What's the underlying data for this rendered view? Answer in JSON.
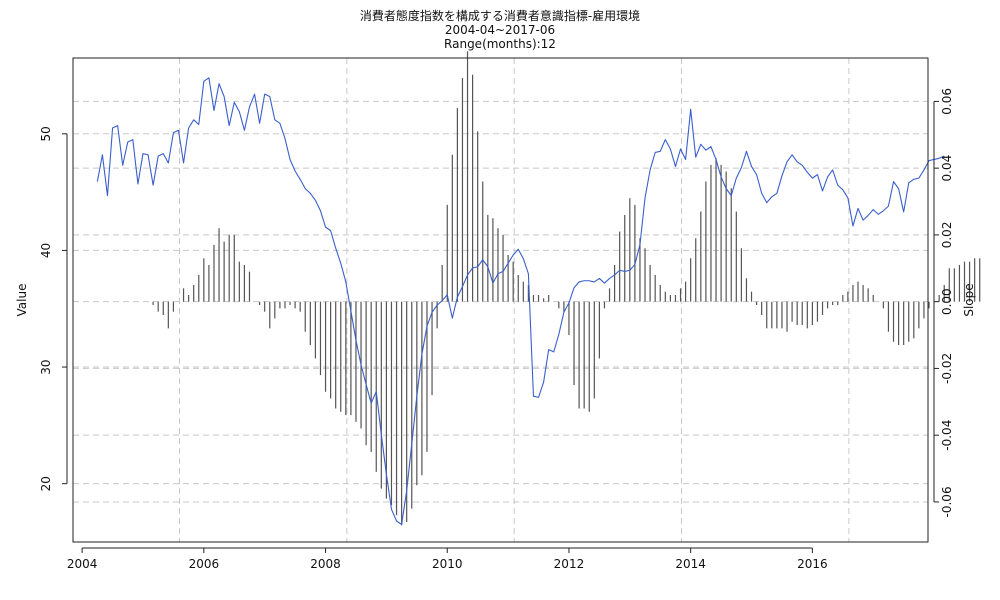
{
  "chart_data": {
    "type": "line",
    "title": "消費者態度指数を構成する消費者意識指標-雇用環境",
    "subtitle_lines": [
      "2004-04~2017-06",
      "Range(months):12"
    ],
    "xlabel": "",
    "ylabel_left": "Value",
    "ylabel_right": "Slope",
    "x_ticks": [
      "2004",
      "2006",
      "2008",
      "2010",
      "2012",
      "2014",
      "2016"
    ],
    "y_left_ticks": [
      "20",
      "30",
      "40",
      "50"
    ],
    "y_right_ticks": [
      "-0.06",
      "-0.04",
      "-0.02",
      "0.00",
      "0.02",
      "0.04",
      "0.06"
    ],
    "xlim": [
      2003.85,
      2017.9
    ],
    "ylim_left": [
      15.0,
      56.5
    ],
    "ylim_right": [
      -0.072,
      0.073
    ],
    "grid": true,
    "x_start": "2004-04",
    "series": [
      {
        "kind": "line",
        "axis": "left",
        "color": "#3a5fcd",
        "values": [
          45.9,
          48.2,
          44.7,
          50.5,
          50.7,
          47.3,
          49.3,
          49.5,
          45.7,
          48.3,
          48.2,
          45.6,
          48.1,
          48.3,
          47.5,
          50.1,
          50.3,
          47.5,
          50.5,
          51.2,
          50.8,
          54.5,
          54.8,
          52.0,
          54.3,
          53.2,
          50.7,
          52.7,
          51.9,
          50.3,
          52.3,
          53.4,
          50.9,
          53.4,
          53.2,
          51.2,
          50.9,
          49.6,
          47.8,
          46.8,
          46.1,
          45.3,
          44.9,
          44.3,
          43.4,
          42.0,
          41.7,
          40.2,
          38.9,
          37.3,
          34.8,
          32.3,
          30.2,
          28.5,
          26.9,
          27.9,
          24.2,
          20.8,
          17.8,
          16.8,
          16.5,
          19.4,
          23.4,
          27.5,
          31.1,
          33.5,
          34.7,
          35.3,
          35.7,
          36.2,
          34.2,
          36.0,
          36.9,
          37.9,
          38.5,
          38.6,
          39.2,
          38.6,
          37.2,
          38.0,
          38.2,
          38.9,
          39.6,
          40.1,
          39.3,
          38.0,
          27.5,
          27.4,
          28.7,
          31.5,
          31.3,
          32.8,
          34.7,
          35.5,
          36.8,
          37.3,
          37.4,
          37.4,
          37.3,
          37.6,
          37.2,
          37.6,
          37.9,
          38.3,
          38.2,
          38.3,
          38.8,
          40.5,
          44.5,
          46.9,
          48.4,
          48.5,
          49.5,
          48.7,
          47.2,
          48.7,
          47.8,
          52.1,
          48.0,
          49.1,
          48.6,
          48.9,
          47.8,
          46.3,
          45.3,
          44.7,
          46.2,
          47.1,
          48.5,
          47.2,
          46.5,
          44.9,
          44.1,
          44.6,
          44.9,
          46.4,
          47.6,
          48.2,
          47.6,
          47.3,
          46.7,
          46.2,
          46.5,
          45.1,
          46.3,
          46.9,
          45.6,
          45.2,
          44.5,
          42.1,
          43.6,
          42.6,
          43.0,
          43.5,
          43.1,
          43.4,
          43.8,
          45.9,
          45.3,
          43.3,
          45.8,
          46.1,
          46.2,
          46.9,
          47.7,
          47.8,
          47.9,
          48.1
        ]
      },
      {
        "kind": "histogram",
        "axis": "right",
        "color": "#555555",
        "x_start": "2005-03",
        "values": [
          -0.001,
          -0.003,
          -0.004,
          -0.008,
          -0.003,
          0.0,
          0.004,
          0.002,
          0.005,
          0.008,
          0.013,
          0.011,
          0.017,
          0.022,
          0.018,
          0.02,
          0.02,
          0.012,
          0.011,
          0.009,
          0.0,
          -0.001,
          -0.003,
          -0.008,
          -0.005,
          -0.002,
          -0.002,
          -0.001,
          -0.002,
          -0.003,
          -0.009,
          -0.013,
          -0.017,
          -0.022,
          -0.027,
          -0.029,
          -0.032,
          -0.033,
          -0.034,
          -0.034,
          -0.036,
          -0.038,
          -0.043,
          -0.045,
          -0.051,
          -0.056,
          -0.059,
          -0.061,
          -0.064,
          -0.067,
          -0.066,
          -0.062,
          -0.055,
          -0.052,
          -0.045,
          -0.028,
          -0.008,
          0.011,
          0.029,
          0.044,
          0.058,
          0.067,
          0.075,
          0.068,
          0.051,
          0.036,
          0.026,
          0.025,
          0.022,
          0.02,
          0.014,
          0.012,
          0.008,
          0.006,
          0.005,
          0.002,
          0.002,
          0.001,
          0.002,
          0.0,
          -0.002,
          -0.003,
          -0.01,
          -0.025,
          -0.032,
          -0.032,
          -0.033,
          -0.029,
          -0.017,
          -0.002,
          0.004,
          0.011,
          0.021,
          0.026,
          0.031,
          0.029,
          0.019,
          0.016,
          0.011,
          0.008,
          0.005,
          0.003,
          0.002,
          0.002,
          0.004,
          0.006,
          0.013,
          0.019,
          0.027,
          0.036,
          0.041,
          0.043,
          0.041,
          0.039,
          0.034,
          0.027,
          0.016,
          0.007,
          0.003,
          -0.001,
          -0.004,
          -0.008,
          -0.008,
          -0.008,
          -0.008,
          -0.009,
          -0.006,
          -0.007,
          -0.007,
          -0.008,
          -0.007,
          -0.006,
          -0.004,
          -0.002,
          -0.001,
          -0.001,
          0.002,
          0.003,
          0.005,
          0.006,
          0.005,
          0.004,
          0.002,
          0.0,
          -0.002,
          -0.009,
          -0.012,
          -0.013,
          -0.013,
          -0.012,
          -0.011,
          -0.008,
          -0.005,
          -0.002,
          0.0,
          0.002,
          0.005,
          0.01,
          0.01,
          0.011,
          0.012,
          0.012,
          0.013,
          0.013
        ]
      }
    ]
  }
}
